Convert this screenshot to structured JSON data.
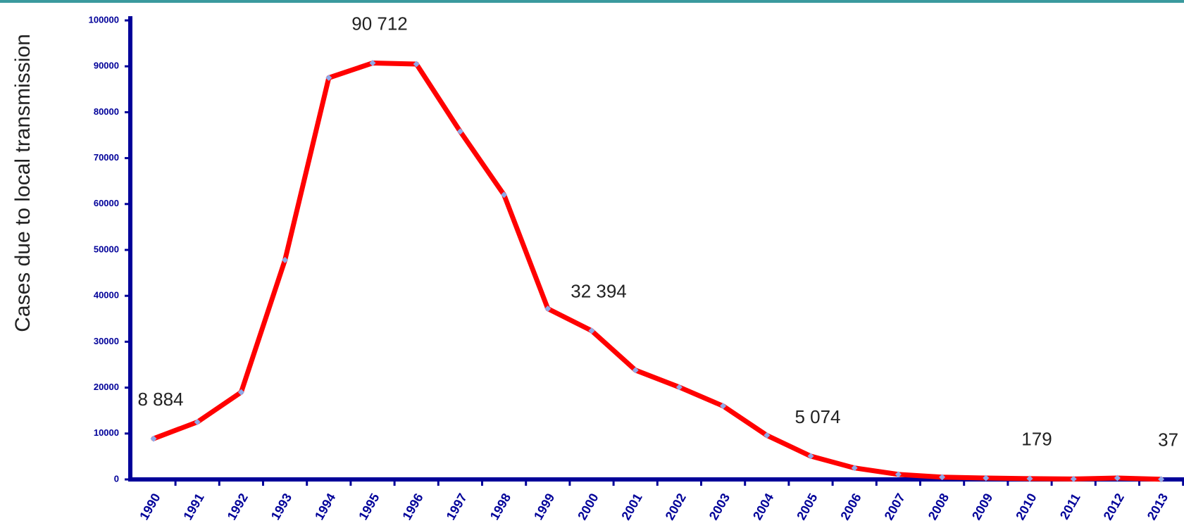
{
  "chart_data": {
    "type": "line",
    "y_label": "Cases due to local transmission",
    "categories": [
      "1990",
      "1991",
      "1992",
      "1993",
      "1994",
      "1995",
      "1996",
      "1997",
      "1998",
      "1999",
      "2000",
      "2001",
      "2002",
      "2003",
      "2004",
      "2005",
      "2006",
      "2007",
      "2008",
      "2009",
      "2010",
      "2011",
      "2012",
      "2013"
    ],
    "series": [
      {
        "name": "Cases",
        "color": "#ff0000",
        "marker_color": "#8ea9e8",
        "values": [
          8884,
          12500,
          19000,
          47800,
          87500,
          90712,
          90500,
          75800,
          62000,
          37200,
          32394,
          23800,
          20100,
          16000,
          9600,
          5074,
          2500,
          1100,
          500,
          300,
          179,
          100,
          300,
          37
        ],
        "value_labels": [
          "8 884",
          null,
          null,
          null,
          null,
          "90 712",
          null,
          null,
          null,
          null,
          "32 394",
          null,
          null,
          null,
          null,
          "5 074",
          null,
          null,
          null,
          null,
          "179",
          null,
          null,
          "37"
        ]
      }
    ],
    "ylim": [
      0,
      100000
    ],
    "yticks": [
      0,
      10000,
      20000,
      30000,
      40000,
      50000,
      60000,
      70000,
      80000,
      90000,
      100000
    ],
    "axis_color": "#000099"
  }
}
